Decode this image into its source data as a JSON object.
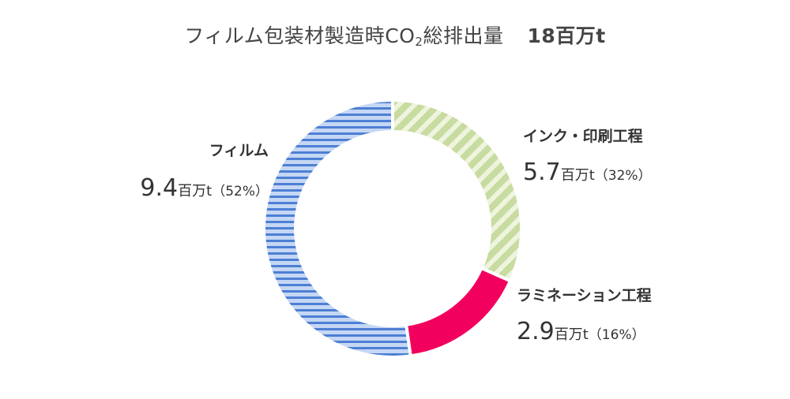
{
  "title": {
    "prefix": "フィルム包装材製造時CO",
    "subscript": "2",
    "suffix": "総排出量",
    "total": "18百万t"
  },
  "chart_data": {
    "type": "pie",
    "unit": "百万t",
    "categories": [
      "インク・印刷工程",
      "ラミネーション工程",
      "フィルム"
    ],
    "values": [
      5.7,
      2.9,
      9.4
    ],
    "percent": [
      32,
      16,
      52
    ],
    "value_labels": [
      "5.7",
      "2.9",
      "9.4"
    ],
    "percent_labels": [
      "（32%）",
      "（16%）",
      "（52%）"
    ],
    "colors": [
      "#c8dba0",
      "#f2005e",
      "#b9cdf0"
    ],
    "stripe_colors": [
      "#eef4dd",
      null,
      "#4d7fd4"
    ],
    "legend": "none"
  }
}
